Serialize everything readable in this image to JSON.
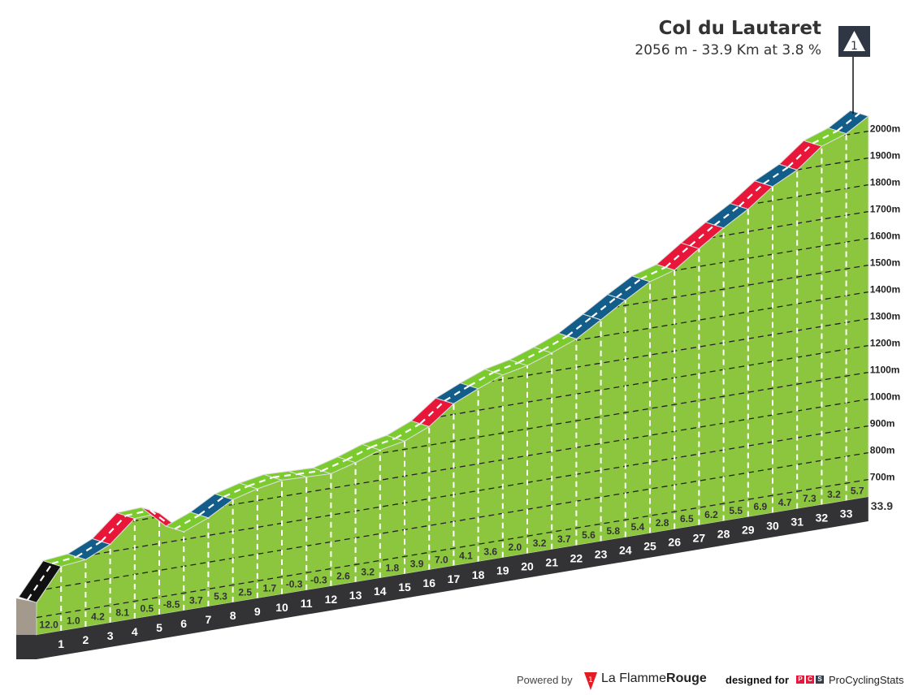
{
  "header": {
    "climb_name": "Col du Lautaret",
    "climb_summary": "2056 m - 33.9 Km at 3.8 %",
    "category_badge": "1"
  },
  "chart_data": {
    "type": "area",
    "title": "Col du Lautaret",
    "summit_elevation_m": 2056,
    "total_km": 33.9,
    "avg_gradient_pct": 3.8,
    "km_ticks": [
      "1",
      "2",
      "3",
      "4",
      "5",
      "6",
      "7",
      "8",
      "9",
      "10",
      "11",
      "12",
      "13",
      "14",
      "15",
      "16",
      "17",
      "18",
      "19",
      "20",
      "21",
      "22",
      "23",
      "24",
      "25",
      "26",
      "27",
      "28",
      "29",
      "30",
      "31",
      "32",
      "33"
    ],
    "end_km_label": "33.9",
    "segment_gradients": [
      12.0,
      1.0,
      4.2,
      8.1,
      0.5,
      -8.5,
      3.7,
      5.3,
      2.5,
      1.7,
      -0.3,
      -0.3,
      2.6,
      3.2,
      1.8,
      3.9,
      7.0,
      4.1,
      3.6,
      2.0,
      3.2,
      3.7,
      5.6,
      5.8,
      5.4,
      2.8,
      6.5,
      6.2,
      5.5,
      6.9,
      4.7,
      7.3,
      3.2,
      5.7
    ],
    "segment_gradient_labels": [
      "12.0",
      "1.0",
      "4.2",
      "8.1",
      "0.5",
      "-8.5",
      "3.7",
      "5.3",
      "2.5",
      "1.7",
      "-0.3",
      "-0.3",
      "2.6",
      "3.2",
      "1.8",
      "3.9",
      "7.0",
      "4.1",
      "3.6",
      "2.0",
      "3.2",
      "3.7",
      "5.6",
      "5.8",
      "5.4",
      "2.8",
      "6.5",
      "6.2",
      "5.5",
      "6.9",
      "4.7",
      "7.3",
      "3.2",
      "5.7"
    ],
    "altitude_ticks": [
      "700m",
      "800m",
      "900m",
      "1000m",
      "1100m",
      "1200m",
      "1300m",
      "1400m",
      "1500m",
      "1600m",
      "1700m",
      "1800m",
      "1900m",
      "2000m"
    ],
    "altitude_tick_values": [
      700,
      800,
      900,
      1000,
      1100,
      1200,
      1300,
      1400,
      1500,
      1600,
      1700,
      1800,
      1900,
      2000
    ],
    "colors": {
      "fill": "#8cc63f",
      "easy": "#7ccb2e",
      "medium": "#135d8a",
      "hard": "#e8173a",
      "extreme": "#111111",
      "base": "#333336",
      "side": "#a39a8d"
    }
  },
  "footer": {
    "powered_by": "Powered by",
    "brand_a": "La Flamme",
    "brand_b": "Rouge",
    "designed_for": "designed for",
    "pcs_letters": [
      "P",
      "C",
      "S"
    ],
    "pcs_name": "ProCyclingStats"
  }
}
